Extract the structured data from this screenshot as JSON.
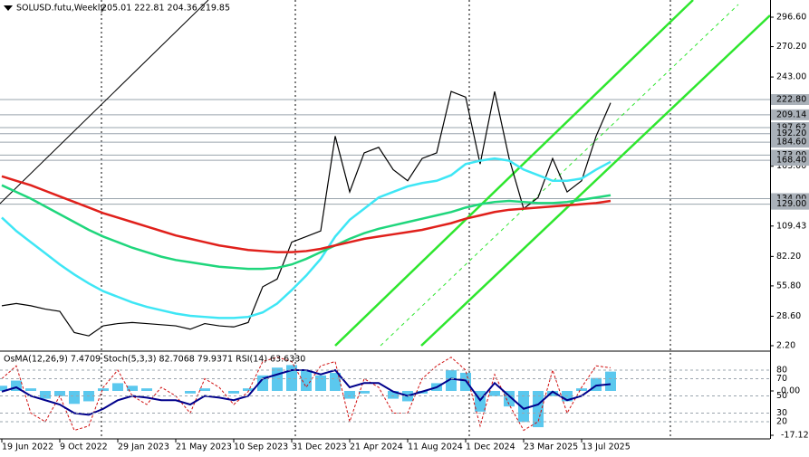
{
  "header": {
    "symbol": "SOLUSD.futu,Weekly",
    "ohlc": "205.01 222.81 204.36 219.85"
  },
  "chart_data": [
    {
      "type": "line",
      "categories": [
        "19 Jun 2022",
        null,
        null,
        null,
        "9 Oct 2022",
        null,
        null,
        null,
        "29 Jan 2023",
        null,
        null,
        null,
        "21 May 2023",
        null,
        null,
        null,
        "10 Sep 2023",
        null,
        null,
        null,
        "31 Dec 2023",
        null,
        null,
        null,
        "21 Apr 2024",
        null,
        null,
        null,
        "11 Aug 2024",
        null,
        null,
        null,
        "1 Dec 2024",
        null,
        null,
        null,
        "23 Mar 2025",
        null,
        null,
        null,
        "13 Jul 2025",
        null,
        null
      ],
      "series": [
        {
          "color": "#000000",
          "values": [
            38,
            40,
            38,
            35,
            33,
            14,
            11,
            20,
            22,
            23,
            22,
            21,
            20,
            17,
            22,
            20,
            19,
            23,
            55,
            62,
            95,
            100,
            105,
            190,
            140,
            175,
            180,
            160,
            150,
            170,
            175,
            230,
            225,
            165,
            230,
            170,
            125,
            135,
            170,
            140,
            150,
            190,
            219.85
          ]
        },
        {
          "color": "#3ee6f5",
          "values": [
            117,
            105,
            95,
            85,
            75,
            66,
            58,
            51,
            46,
            41,
            37,
            34,
            31,
            29,
            28,
            27,
            27,
            28,
            32,
            40,
            52,
            65,
            80,
            100,
            115,
            125,
            135,
            140,
            145,
            148,
            150,
            155,
            165,
            168,
            170,
            168,
            160,
            155,
            150,
            150,
            152,
            160,
            167
          ]
        },
        {
          "color": "#1fd67c",
          "values": [
            146,
            140,
            134,
            127,
            120,
            113,
            106,
            100,
            95,
            90,
            86,
            82,
            79,
            77,
            75,
            73,
            72,
            71,
            71,
            72,
            75,
            80,
            86,
            92,
            98,
            103,
            107,
            110,
            113,
            116,
            119,
            122,
            126,
            129,
            131,
            132,
            131,
            130,
            130,
            131,
            133,
            135,
            137
          ]
        },
        {
          "color": "#e0201b",
          "values": [
            154,
            150,
            146,
            141,
            136,
            131,
            126,
            121,
            117,
            113,
            109,
            105,
            101,
            98,
            95,
            92,
            90,
            88,
            87,
            86,
            86,
            87,
            89,
            92,
            95,
            98,
            100,
            102,
            104,
            106,
            109,
            112,
            116,
            119,
            122,
            124,
            125,
            126,
            127,
            128,
            129,
            130,
            132
          ]
        }
      ],
      "ylim": [
        2.2,
        296.6
      ],
      "yticks": [
        {
          "value": 296.6,
          "label": "296.60"
        },
        {
          "value": 270.2,
          "label": "270.20"
        },
        {
          "value": 243,
          "label": "243.00"
        },
        {
          "value": 163,
          "label": "163.00"
        },
        {
          "value": 109.43,
          "label": "109.43"
        },
        {
          "value": 82.2,
          "label": "82.20"
        },
        {
          "value": 55.8,
          "label": "55.80"
        },
        {
          "value": 28.6,
          "label": "28.60"
        },
        {
          "value": 2.2,
          "label": "2.20"
        }
      ],
      "levels": [
        {
          "value": 222.8,
          "label": "222.80"
        },
        {
          "value": 209.14,
          "label": "209.14"
        },
        {
          "value": 197.62,
          "label": "197.62"
        },
        {
          "value": 192.2,
          "label": "192.20"
        },
        {
          "value": 184.6,
          "label": "184.60"
        },
        {
          "value": 173,
          "label": "173.00"
        },
        {
          "value": 168.4,
          "label": "168.40"
        },
        {
          "value": 134,
          "label": "134.00"
        },
        {
          "value": 129,
          "label": "129.00"
        }
      ]
    },
    {
      "type": "oscillator",
      "title": "OsMA(12,26,9) 7.4709 Stoch(5,3,3) 82.7068 79.9371 RSI(14) 63.6330",
      "series": [
        {
          "color": "#5bc8ee",
          "values": [
            2,
            4,
            1,
            -3,
            -2,
            -5,
            -4,
            1,
            3,
            2,
            1,
            0,
            0,
            -1,
            1,
            0,
            -1,
            1,
            6,
            9,
            10,
            8,
            6,
            7,
            -3,
            -1,
            0,
            -3,
            -4,
            -1,
            3,
            8,
            7,
            -8,
            -2,
            -6,
            -12,
            -14,
            -2,
            -4,
            1,
            5,
            7.4709
          ],
          "axis": "y2"
        },
        {
          "color": "#d01010",
          "values": [
            70,
            85,
            30,
            20,
            50,
            10,
            15,
            60,
            80,
            50,
            40,
            60,
            50,
            30,
            70,
            60,
            40,
            55,
            90,
            95,
            90,
            60,
            85,
            90,
            20,
            70,
            60,
            30,
            30,
            70,
            85,
            95,
            80,
            15,
            75,
            40,
            10,
            20,
            80,
            30,
            60,
            85,
            82.7068
          ]
        },
        {
          "color": "#00008b",
          "values": [
            55,
            60,
            50,
            45,
            40,
            30,
            28,
            35,
            45,
            50,
            48,
            45,
            45,
            40,
            50,
            48,
            45,
            50,
            70,
            75,
            80,
            80,
            75,
            80,
            60,
            65,
            65,
            55,
            50,
            55,
            60,
            70,
            68,
            45,
            65,
            50,
            35,
            40,
            55,
            45,
            50,
            62,
            63.633
          ]
        }
      ],
      "yticks": [
        80,
        70,
        50,
        30,
        20
      ],
      "y2ticks": [
        {
          "value": 0,
          "label": "0.00"
        },
        {
          "value": -17.1267,
          "label": "-17.1267"
        }
      ]
    }
  ]
}
